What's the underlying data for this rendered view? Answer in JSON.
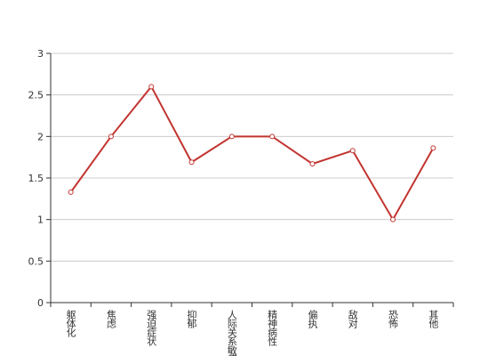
{
  "chart_data": {
    "type": "line",
    "categories": [
      "躯体化",
      "焦虑",
      "强迫症状",
      "抑郁",
      "人际关系敏感",
      "精神病性",
      "偏执",
      "敌对",
      "恐怖",
      "其他"
    ],
    "values": [
      1.33,
      2,
      2.6,
      1.69,
      2,
      2,
      1.67,
      1.83,
      1,
      1.86
    ],
    "color": "#c23531",
    "ylim": [
      0,
      3
    ],
    "yticks": [
      0,
      0.5,
      1,
      1.5,
      2,
      2.5,
      3
    ],
    "grid": true
  }
}
